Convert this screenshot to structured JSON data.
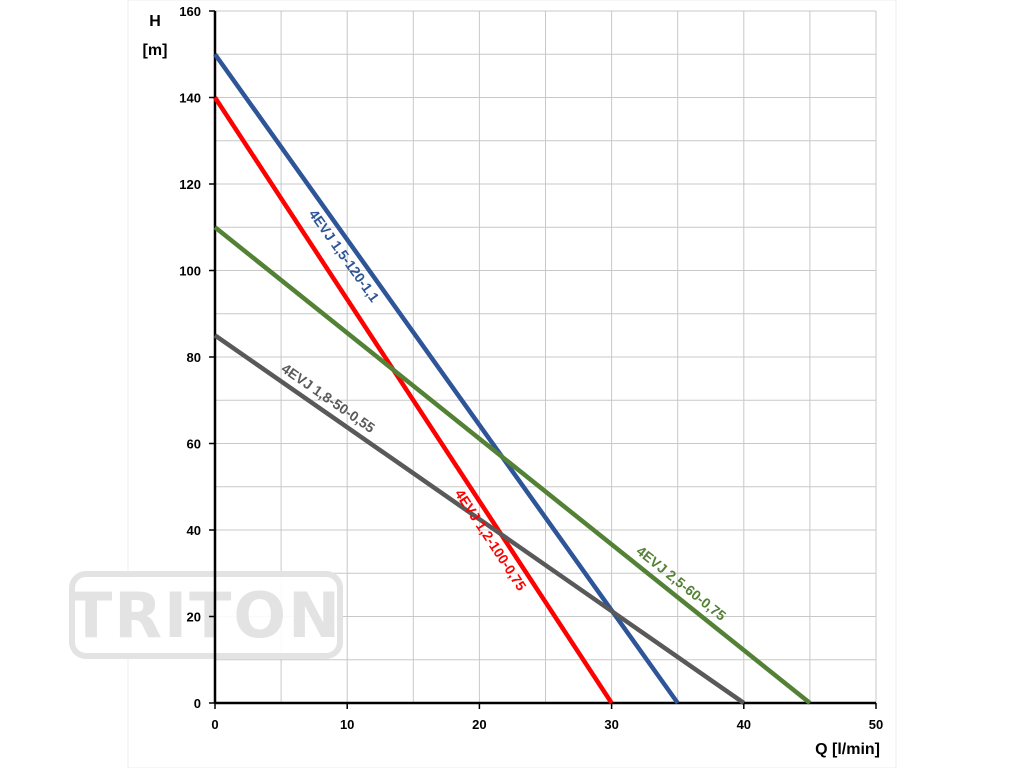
{
  "watermark": {
    "text": "TRITON",
    "color": "#d9d9d9"
  },
  "chart_data": {
    "type": "line",
    "xlabel": "Q [l/min]",
    "ylabel_line1": "H",
    "ylabel_line2": "[m]",
    "xlim": [
      0,
      50
    ],
    "ylim": [
      0,
      160
    ],
    "x_major_ticks": [
      0,
      10,
      20,
      30,
      40,
      50
    ],
    "y_major_ticks": [
      0,
      20,
      40,
      60,
      80,
      100,
      120,
      140,
      160
    ],
    "x_minor_step": 5,
    "y_minor_step": 10,
    "grid": true,
    "series": [
      {
        "name": "4EVJ 1,5-120-1,1",
        "color": "#2e5597",
        "x": [
          0,
          35
        ],
        "y": [
          150,
          0
        ]
      },
      {
        "name": "4EVJ 1,2-100-0,75",
        "color": "#ff0000",
        "x": [
          0,
          30
        ],
        "y": [
          140,
          0
        ]
      },
      {
        "name": "4EVJ 2,5-60-0,75",
        "color": "#538135",
        "x": [
          0,
          45
        ],
        "y": [
          110,
          0
        ]
      },
      {
        "name": "4EVJ 1,8-50-0,55",
        "color": "#595959",
        "x": [
          0,
          40
        ],
        "y": [
          85,
          0
        ]
      }
    ]
  }
}
